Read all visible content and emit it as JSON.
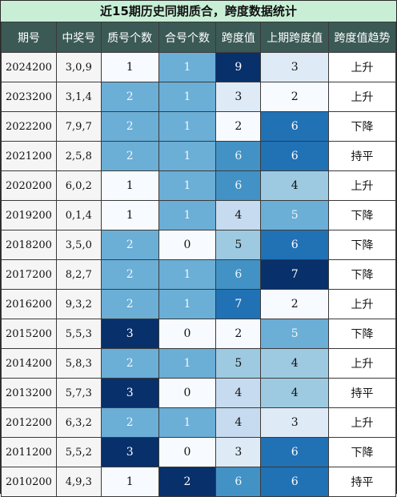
{
  "title": "近15期历史同期质合，跨度数据统计",
  "headers": [
    "期号",
    "中奖号",
    "质号个数",
    "合号个数",
    "跨度值",
    "上期跨度值",
    "跨度值趋势"
  ],
  "rows": [
    {
      "issue": "2024200",
      "numbers": "3,0,9",
      "prime": "1",
      "composite": "1",
      "span": "9",
      "prev_span": "3",
      "trend": "上升"
    },
    {
      "issue": "2023200",
      "numbers": "3,1,4",
      "prime": "2",
      "composite": "1",
      "span": "3",
      "prev_span": "2",
      "trend": "上升"
    },
    {
      "issue": "2022200",
      "numbers": "7,9,7",
      "prime": "2",
      "composite": "1",
      "span": "2",
      "prev_span": "6",
      "trend": "下降"
    },
    {
      "issue": "2021200",
      "numbers": "2,5,8",
      "prime": "2",
      "composite": "1",
      "span": "6",
      "prev_span": "6",
      "trend": "持平"
    },
    {
      "issue": "2020200",
      "numbers": "6,0,2",
      "prime": "1",
      "composite": "1",
      "span": "6",
      "prev_span": "4",
      "trend": "上升"
    },
    {
      "issue": "2019200",
      "numbers": "0,1,4",
      "prime": "1",
      "composite": "1",
      "span": "4",
      "prev_span": "5",
      "trend": "下降"
    },
    {
      "issue": "2018200",
      "numbers": "3,5,0",
      "prime": "2",
      "composite": "0",
      "span": "5",
      "prev_span": "6",
      "trend": "下降"
    },
    {
      "issue": "2017200",
      "numbers": "8,2,7",
      "prime": "2",
      "composite": "1",
      "span": "6",
      "prev_span": "7",
      "trend": "下降"
    },
    {
      "issue": "2016200",
      "numbers": "9,3,2",
      "prime": "2",
      "composite": "1",
      "span": "7",
      "prev_span": "2",
      "trend": "上升"
    },
    {
      "issue": "2015200",
      "numbers": "5,5,3",
      "prime": "3",
      "composite": "0",
      "span": "2",
      "prev_span": "5",
      "trend": "下降"
    },
    {
      "issue": "2014200",
      "numbers": "5,8,3",
      "prime": "2",
      "composite": "1",
      "span": "5",
      "prev_span": "4",
      "trend": "上升"
    },
    {
      "issue": "2013200",
      "numbers": "5,7,3",
      "prime": "3",
      "composite": "0",
      "span": "4",
      "prev_span": "4",
      "trend": "持平"
    },
    {
      "issue": "2012200",
      "numbers": "6,3,2",
      "prime": "2",
      "composite": "1",
      "span": "4",
      "prev_span": "3",
      "trend": "上升"
    },
    {
      "issue": "2011200",
      "numbers": "5,5,2",
      "prime": "3",
      "composite": "0",
      "span": "3",
      "prev_span": "6",
      "trend": "下降"
    },
    {
      "issue": "2010200",
      "numbers": "4,9,3",
      "prime": "1",
      "composite": "2",
      "span": "6",
      "prev_span": "6",
      "trend": "持平"
    }
  ],
  "colors": {
    "title_bg": "#c8efd6",
    "header_bg": "#3b5a55",
    "prime": {
      "1": "#f7fbff",
      "2": "#6baed6",
      "3": "#08306b"
    },
    "composite": {
      "0": "#f7fbff",
      "1": "#6baed6",
      "2": "#08306b"
    },
    "span": {
      "2": "#f7fbff",
      "3": "#deebf7",
      "4": "#c6dbef",
      "5": "#9ecae1",
      "6": "#4292c6",
      "7": "#2171b5",
      "9": "#08306b"
    },
    "prev_span": {
      "2": "#f7fbff",
      "3": "#deebf7",
      "4": "#9ecae1",
      "5": "#6baed6",
      "6": "#2171b5",
      "7": "#08306b"
    }
  }
}
